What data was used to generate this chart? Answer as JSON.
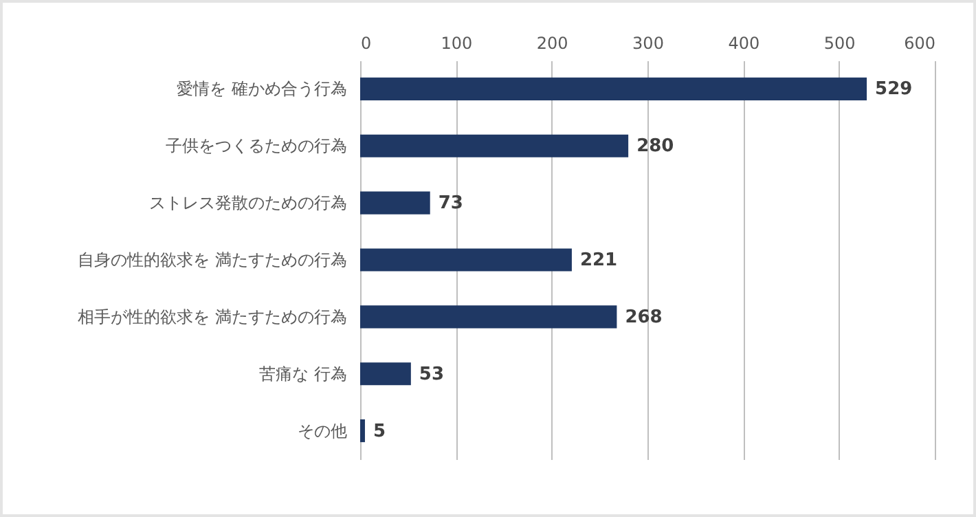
{
  "chart_data": {
    "type": "bar",
    "orientation": "horizontal",
    "categories": [
      "愛情を 確かめ合う行為",
      "子供をつくるための行為",
      "ストレス発散のための行為",
      "自身の性的欲求を 満たすための行為",
      "相手が性的欲求を 満たすための行為",
      "苦痛な 行為",
      "その他"
    ],
    "values": [
      529,
      280,
      73,
      221,
      268,
      53,
      5
    ],
    "color": "#1f3864",
    "xlim": [
      0,
      600
    ],
    "xticks": [
      0,
      100,
      200,
      300,
      400,
      500,
      600
    ],
    "grid": "x",
    "data_labels": true
  }
}
